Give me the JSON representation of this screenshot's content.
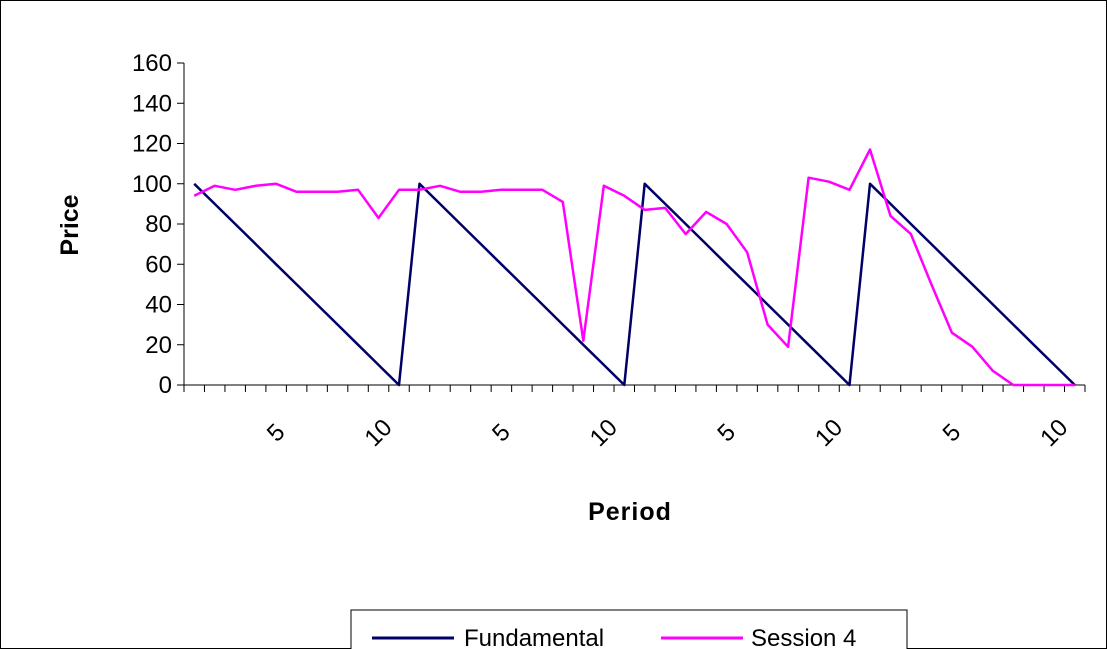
{
  "chart_data": {
    "type": "line",
    "xlabel": "Period",
    "ylabel": "Price",
    "ylim": [
      0,
      160
    ],
    "yticks": [
      0,
      20,
      40,
      60,
      80,
      100,
      120,
      140,
      160
    ],
    "grid": false,
    "legend_position": "bottom",
    "x": [
      1,
      2,
      3,
      4,
      5,
      6,
      7,
      8,
      9,
      10,
      11,
      1,
      2,
      3,
      4,
      5,
      6,
      7,
      8,
      9,
      10,
      11,
      1,
      2,
      3,
      4,
      5,
      6,
      7,
      8,
      9,
      10,
      11,
      1,
      2,
      3,
      4,
      5,
      6,
      7,
      8,
      9,
      10,
      11
    ],
    "xtick_labels": [
      "5",
      "10",
      "5",
      "10",
      "5",
      "10",
      "5",
      "10"
    ],
    "xtick_label_periods": [
      5,
      10,
      16,
      21,
      27,
      32,
      38,
      43
    ],
    "series": [
      {
        "name": "Fundamental",
        "color": "#000066",
        "values": [
          100,
          90,
          80,
          70,
          60,
          50,
          40,
          30,
          20,
          10,
          0,
          100,
          90,
          80,
          70,
          60,
          50,
          40,
          30,
          20,
          10,
          0,
          100,
          90,
          80,
          70,
          60,
          50,
          40,
          30,
          20,
          10,
          0,
          100,
          90,
          80,
          70,
          60,
          50,
          40,
          30,
          20,
          10,
          0
        ]
      },
      {
        "name": "Session 4",
        "color": "#ff00ff",
        "values": [
          94,
          99,
          97,
          99,
          100,
          96,
          96,
          96,
          97,
          83,
          97,
          97,
          99,
          96,
          96,
          97,
          97,
          97,
          91,
          22,
          99,
          94,
          87,
          88,
          75,
          86,
          80,
          66,
          30,
          19,
          103,
          101,
          97,
          117,
          84,
          75,
          50,
          26,
          19,
          7,
          0,
          0,
          0,
          0
        ]
      }
    ]
  }
}
